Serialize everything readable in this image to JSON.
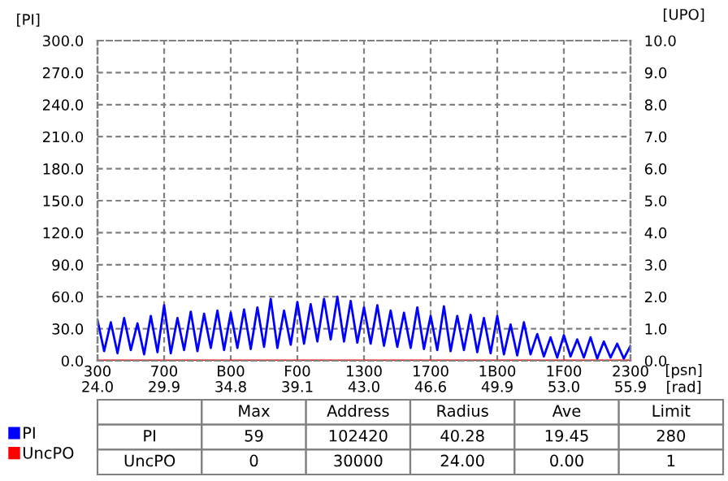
{
  "chart_data": {
    "type": "line",
    "ylabel": "[PI]",
    "y2label": "[UPO]",
    "xlabel": "[psn]",
    "categories": [
      "300",
      null,
      null,
      null,
      null,
      null,
      null,
      null,
      null,
      null,
      "700",
      null,
      null,
      null,
      null,
      null,
      null,
      null,
      null,
      null,
      "B00",
      null,
      null,
      null,
      null,
      null,
      null,
      null,
      null,
      null,
      "F00",
      null,
      null,
      null,
      null,
      null,
      null,
      null,
      null,
      null,
      "1300",
      null,
      null,
      null,
      null,
      null,
      null,
      null,
      null,
      null,
      "1700",
      null,
      null,
      null,
      null,
      null,
      null,
      null,
      null,
      null,
      "1B00",
      null,
      null,
      null,
      null,
      null,
      null,
      null,
      null,
      null,
      "1F00",
      null,
      null,
      null,
      null,
      null,
      null,
      null,
      null,
      null,
      "2300"
    ],
    "ylim": [
      0,
      300
    ],
    "yticks": [
      {
        "value": 0,
        "label": "0.0"
      },
      {
        "value": 30,
        "label": "30.0"
      },
      {
        "value": 60,
        "label": "60.0"
      },
      {
        "value": 90,
        "label": "90.0"
      },
      {
        "value": 120,
        "label": "120.0"
      },
      {
        "value": 150,
        "label": "150.0"
      },
      {
        "value": 180,
        "label": "180.0"
      },
      {
        "value": 210,
        "label": "210.0"
      },
      {
        "value": 240,
        "label": "240.0"
      },
      {
        "value": 270,
        "label": "270.0"
      },
      {
        "value": 300,
        "label": "300.0"
      }
    ],
    "y2lim": [
      0,
      10
    ],
    "y2ticks": [
      {
        "value": 0,
        "label": "0.0"
      },
      {
        "value": 1,
        "label": "1.0"
      },
      {
        "value": 2,
        "label": "2.0"
      },
      {
        "value": 3,
        "label": "3.0"
      },
      {
        "value": 4,
        "label": "4.0"
      },
      {
        "value": 5,
        "label": "5.0"
      },
      {
        "value": 6,
        "label": "6.0"
      },
      {
        "value": 7,
        "label": "7.0"
      },
      {
        "value": 8,
        "label": "8.0"
      },
      {
        "value": 9,
        "label": "9.0"
      },
      {
        "value": 10,
        "label": "10.0"
      }
    ],
    "grid": true,
    "legend": "bottom left",
    "line_style": "solid",
    "series": [
      {
        "name": "PI",
        "color": "#0000ff",
        "values": [
          38,
          9,
          36,
          7,
          40,
          10,
          35,
          6,
          42,
          8,
          52,
          7,
          40,
          10,
          46,
          9,
          44,
          12,
          47,
          10,
          45,
          12,
          48,
          11,
          50,
          13,
          58,
          12,
          47,
          15,
          55,
          16,
          53,
          18,
          58,
          20,
          60,
          18,
          56,
          17,
          50,
          16,
          52,
          14,
          47,
          13,
          45,
          12,
          50,
          11,
          42,
          10,
          51,
          9,
          42,
          10,
          43,
          8,
          40,
          7,
          42,
          6,
          34,
          5,
          36,
          6,
          25,
          4,
          22,
          3,
          24,
          4,
          20,
          3,
          22,
          2,
          18,
          3,
          16,
          2,
          14
        ]
      },
      {
        "name": "UncPO",
        "color": "#ff0000",
        "axis": "y2",
        "values": [
          0,
          0,
          0,
          0,
          0,
          0,
          0,
          0,
          0,
          0,
          0,
          0,
          0,
          0,
          0,
          0,
          0,
          0,
          0,
          0,
          0,
          0,
          0,
          0,
          0,
          0,
          0,
          0,
          0,
          0,
          0,
          0,
          0,
          0,
          0,
          0,
          0,
          0,
          0,
          0,
          0,
          0,
          0,
          0,
          0,
          0,
          0,
          0,
          0,
          0,
          0,
          0,
          0,
          0,
          0,
          0,
          0,
          0,
          0,
          0,
          0,
          0,
          0,
          0,
          0,
          0,
          0,
          0,
          0,
          0,
          0,
          0,
          0,
          0,
          0,
          0,
          0,
          0,
          0,
          0,
          0
        ]
      }
    ],
    "annotations": [
      "24.0",
      "29.9",
      "34.8",
      "39.1",
      "43.0",
      "46.6",
      "49.9",
      "53.0",
      "55.9",
      "[rad]",
      "Max",
      "Address",
      "Radius",
      "Ave",
      "Limit",
      "PI",
      "59",
      "102420",
      "40.28",
      "19.45",
      "280",
      "UncPO",
      "0",
      "30000",
      "24.00",
      "0.00",
      "1"
    ]
  }
}
